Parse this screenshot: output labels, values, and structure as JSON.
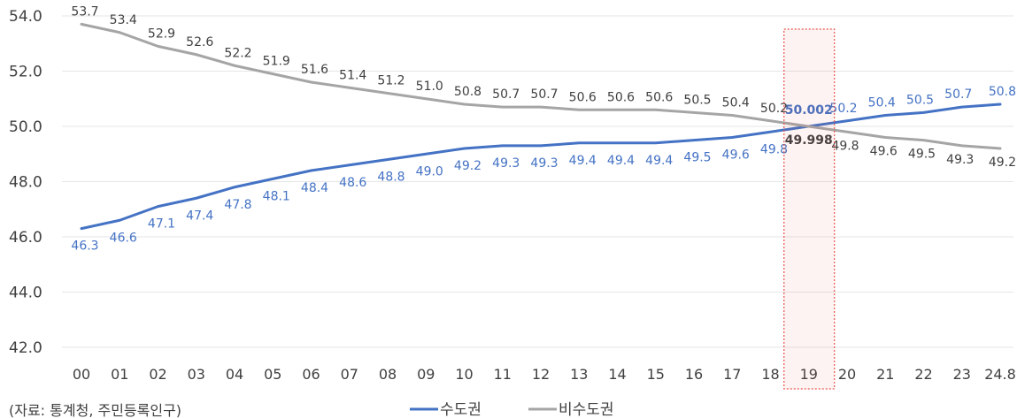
{
  "chart_data": {
    "type": "line",
    "categories": [
      "00",
      "01",
      "02",
      "03",
      "04",
      "05",
      "06",
      "07",
      "08",
      "09",
      "10",
      "11",
      "12",
      "13",
      "14",
      "15",
      "16",
      "17",
      "18",
      "19",
      "20",
      "21",
      "22",
      "23",
      "24.8"
    ],
    "series": [
      {
        "name": "수도권",
        "color": "#4472c4",
        "values": [
          46.3,
          46.6,
          47.1,
          47.4,
          47.8,
          48.1,
          48.4,
          48.6,
          48.8,
          49.0,
          49.2,
          49.3,
          49.3,
          49.4,
          49.4,
          49.4,
          49.5,
          49.6,
          49.8,
          50.002,
          50.2,
          50.4,
          50.5,
          50.7,
          50.8
        ],
        "labels": [
          "46.3",
          "46.6",
          "47.1",
          "47.4",
          "47.8",
          "48.1",
          "48.4",
          "48.6",
          "48.8",
          "49.0",
          "49.2",
          "49.3",
          "49.3",
          "49.4",
          "49.4",
          "49.4",
          "49.5",
          "49.6",
          "49.8",
          "50.002",
          "50.2",
          "50.4",
          "50.5",
          "50.7",
          "50.8"
        ]
      },
      {
        "name": "비수도권",
        "color": "#a5a5a5",
        "values": [
          53.7,
          53.4,
          52.9,
          52.6,
          52.2,
          51.9,
          51.6,
          51.4,
          51.2,
          51.0,
          50.8,
          50.7,
          50.7,
          50.6,
          50.6,
          50.6,
          50.5,
          50.4,
          50.2,
          49.998,
          49.8,
          49.6,
          49.5,
          49.3,
          49.2
        ],
        "labels": [
          "53.7",
          "53.4",
          "52.9",
          "52.6",
          "52.2",
          "51.9",
          "51.6",
          "51.4",
          "51.2",
          "51.0",
          "50.8",
          "50.7",
          "50.7",
          "50.6",
          "50.6",
          "50.6",
          "50.5",
          "50.4",
          "50.2",
          "49.998",
          "49.8",
          "49.6",
          "49.5",
          "49.3",
          "49.2"
        ]
      }
    ],
    "yticks": [
      "42.0",
      "44.0",
      "46.0",
      "48.0",
      "50.0",
      "52.0",
      "54.0"
    ],
    "ylim": [
      42,
      54
    ],
    "grid": true,
    "highlight_category": "19",
    "highlight_color": "#e8524a",
    "legend_position": "bottom"
  },
  "footnote": "(자료: 통계청, 주민등록인구)"
}
